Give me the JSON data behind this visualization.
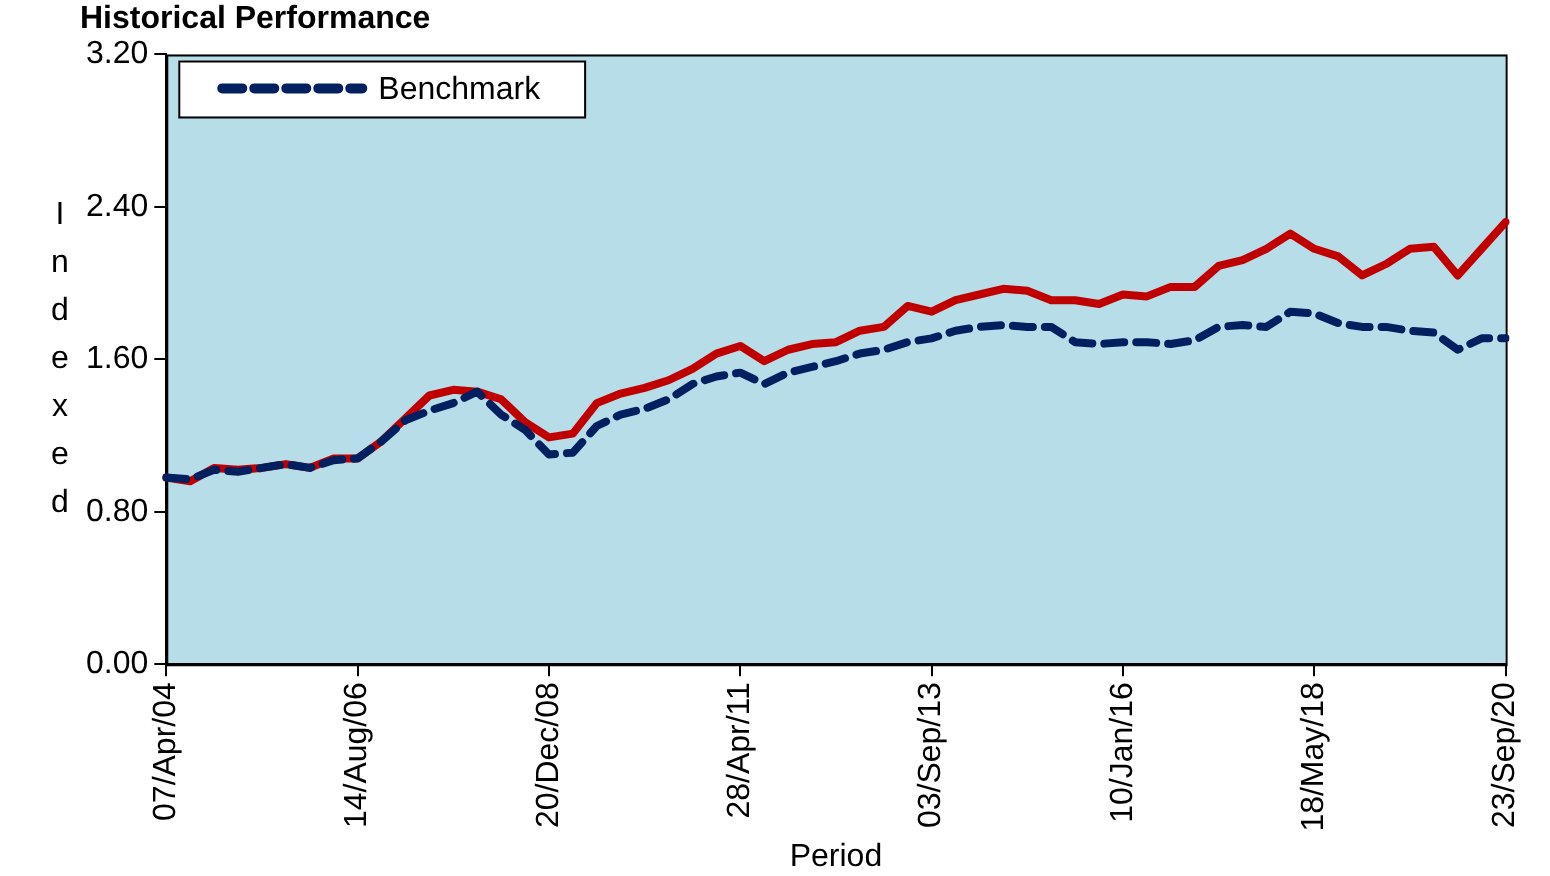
{
  "chart_data": {
    "type": "line",
    "title": "Historical Performance",
    "xlabel": "Period",
    "ylabel": "Indexed",
    "categories": [
      "07/Apr/04",
      null,
      null,
      null,
      null,
      null,
      null,
      null,
      "14/Aug/06",
      null,
      null,
      null,
      null,
      null,
      null,
      null,
      "20/Dec/08",
      null,
      null,
      null,
      null,
      null,
      null,
      null,
      "28/Apr/11",
      null,
      null,
      null,
      null,
      null,
      null,
      null,
      "03/Sep/13",
      null,
      null,
      null,
      null,
      null,
      null,
      null,
      "10/Jan/16",
      null,
      null,
      null,
      null,
      null,
      null,
      null,
      "18/May/18",
      null,
      null,
      null,
      null,
      null,
      null,
      null,
      "23/Sep/20"
    ],
    "series": [
      {
        "color": "#c00000",
        "line_style": "solid",
        "values": [
          0.98,
          0.96,
          1.03,
          1.02,
          1.03,
          1.05,
          1.03,
          1.08,
          1.08,
          1.17,
          1.29,
          1.41,
          1.44,
          1.43,
          1.39,
          1.27,
          1.19,
          1.21,
          1.37,
          1.42,
          1.45,
          1.49,
          1.55,
          1.63,
          1.67,
          1.59,
          1.65,
          1.68,
          1.69,
          1.75,
          1.77,
          1.88,
          1.85,
          1.91,
          1.94,
          1.97,
          1.96,
          1.91,
          1.91,
          1.89,
          1.94,
          1.93,
          1.98,
          1.98,
          2.09,
          2.12,
          2.18,
          2.26,
          2.18,
          2.14,
          2.04,
          2.1,
          2.18,
          2.19,
          2.04,
          2.18,
          2.32
        ]
      },
      {
        "name": "Benchmark",
        "color": "#002060",
        "line_style": "dashed",
        "values": [
          0.98,
          0.97,
          1.02,
          1.01,
          1.03,
          1.05,
          1.03,
          1.07,
          1.08,
          1.17,
          1.28,
          1.33,
          1.37,
          1.43,
          1.31,
          1.23,
          1.1,
          1.11,
          1.25,
          1.31,
          1.34,
          1.39,
          1.47,
          1.51,
          1.53,
          1.47,
          1.53,
          1.56,
          1.59,
          1.63,
          1.65,
          1.69,
          1.71,
          1.75,
          1.77,
          1.78,
          1.77,
          1.77,
          1.69,
          1.68,
          1.69,
          1.69,
          1.68,
          1.7,
          1.77,
          1.78,
          1.77,
          1.85,
          1.84,
          1.79,
          1.77,
          1.77,
          1.75,
          1.74,
          1.65,
          1.71,
          1.71
        ]
      }
    ],
    "ylim": [
      0,
      3.2
    ],
    "yticks": [
      {
        "value": 0,
        "label": "0.00"
      },
      {
        "value": 0.8,
        "label": "0.80"
      },
      {
        "value": 1.6,
        "label": "1.60"
      },
      {
        "value": 2.4,
        "label": "2.40"
      },
      {
        "value": 3.2,
        "label": "3.20"
      }
    ],
    "grid": false,
    "legend": "top left",
    "marker": "none"
  }
}
